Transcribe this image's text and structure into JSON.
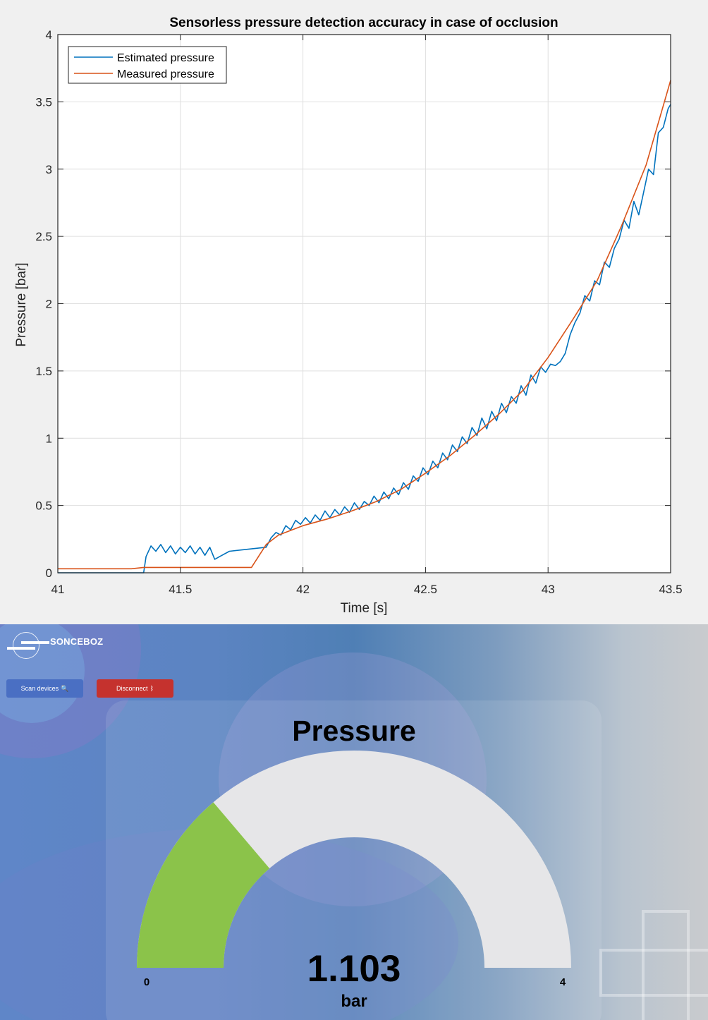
{
  "chart_data": {
    "type": "line",
    "title": "Sensorless pressure detection accuracy in case of occlusion",
    "xlabel": "Time [s]",
    "ylabel": "Pressure [bar]",
    "xlim": [
      41,
      43.5
    ],
    "ylim": [
      0,
      4
    ],
    "x_ticks": [
      "41",
      "41.5",
      "42",
      "42.5",
      "43",
      "43.5"
    ],
    "y_ticks": [
      "0",
      "0.5",
      "1",
      "1.5",
      "2",
      "2.5",
      "3",
      "3.5",
      "4"
    ],
    "grid": true,
    "legend_position": "top-left",
    "series": [
      {
        "name": "Estimated pressure",
        "color": "#0072BD",
        "x": [
          41.0,
          41.35,
          41.36,
          41.38,
          41.4,
          41.42,
          41.44,
          41.46,
          41.48,
          41.5,
          41.52,
          41.54,
          41.56,
          41.58,
          41.6,
          41.62,
          41.64,
          41.66,
          41.7,
          41.75,
          41.8,
          41.85,
          41.87,
          41.89,
          41.91,
          41.93,
          41.95,
          41.97,
          41.99,
          42.01,
          42.03,
          42.05,
          42.07,
          42.09,
          42.11,
          42.13,
          42.15,
          42.17,
          42.19,
          42.21,
          42.23,
          42.25,
          42.27,
          42.29,
          42.31,
          42.33,
          42.35,
          42.37,
          42.39,
          42.41,
          42.43,
          42.45,
          42.47,
          42.49,
          42.51,
          42.53,
          42.55,
          42.57,
          42.59,
          42.61,
          42.63,
          42.65,
          42.67,
          42.69,
          42.71,
          42.73,
          42.75,
          42.77,
          42.79,
          42.81,
          42.83,
          42.85,
          42.87,
          42.89,
          42.91,
          42.93,
          42.95,
          42.97,
          42.99,
          43.01,
          43.03,
          43.05,
          43.07,
          43.09,
          43.11,
          43.13,
          43.15,
          43.17,
          43.19,
          43.21,
          43.23,
          43.25,
          43.27,
          43.29,
          43.31,
          43.33,
          43.35,
          43.37,
          43.39,
          43.41,
          43.43,
          43.45,
          43.47,
          43.49,
          43.5
        ],
        "values": [
          0.0,
          0.0,
          0.12,
          0.2,
          0.16,
          0.21,
          0.15,
          0.2,
          0.14,
          0.19,
          0.15,
          0.2,
          0.14,
          0.19,
          0.13,
          0.19,
          0.1,
          0.12,
          0.16,
          0.17,
          0.18,
          0.19,
          0.26,
          0.3,
          0.28,
          0.35,
          0.32,
          0.39,
          0.36,
          0.41,
          0.37,
          0.43,
          0.39,
          0.46,
          0.41,
          0.47,
          0.43,
          0.49,
          0.45,
          0.52,
          0.47,
          0.53,
          0.5,
          0.57,
          0.52,
          0.6,
          0.55,
          0.63,
          0.58,
          0.67,
          0.62,
          0.72,
          0.68,
          0.78,
          0.73,
          0.83,
          0.78,
          0.89,
          0.84,
          0.95,
          0.9,
          1.01,
          0.96,
          1.08,
          1.02,
          1.15,
          1.07,
          1.2,
          1.13,
          1.26,
          1.19,
          1.31,
          1.26,
          1.39,
          1.32,
          1.47,
          1.41,
          1.53,
          1.49,
          1.55,
          1.54,
          1.57,
          1.63,
          1.77,
          1.86,
          1.93,
          2.06,
          2.02,
          2.17,
          2.14,
          2.31,
          2.27,
          2.41,
          2.48,
          2.62,
          2.56,
          2.76,
          2.66,
          2.83,
          3.0,
          2.96,
          3.27,
          3.31,
          3.45,
          3.48
        ]
      },
      {
        "name": "Measured pressure",
        "color": "#D95319",
        "x": [
          41.0,
          41.3,
          41.35,
          41.5,
          41.79,
          41.85,
          41.9,
          42.0,
          42.1,
          42.2,
          42.3,
          42.4,
          42.5,
          42.6,
          42.7,
          42.8,
          42.9,
          43.0,
          43.1,
          43.2,
          43.3,
          43.4,
          43.5
        ],
        "values": [
          0.03,
          0.03,
          0.04,
          0.04,
          0.04,
          0.21,
          0.28,
          0.35,
          0.4,
          0.46,
          0.53,
          0.62,
          0.74,
          0.87,
          1.02,
          1.18,
          1.36,
          1.6,
          1.88,
          2.17,
          2.58,
          3.03,
          3.66
        ]
      }
    ]
  },
  "app": {
    "brand": "SONCEBOZ",
    "scan_button": "Scan devices",
    "scan_icon": "🔍",
    "disconnect_button": "Disconnect",
    "disconnect_icon": "ᛒ",
    "gauge": {
      "title": "Pressure",
      "value": "1.103",
      "unit": "bar",
      "min_label": "0",
      "max_label": "4",
      "min": 0,
      "max": 4,
      "fill_value": 1.103,
      "fill_color": "#8bc34a",
      "track_color": "#e6e6e8"
    }
  }
}
